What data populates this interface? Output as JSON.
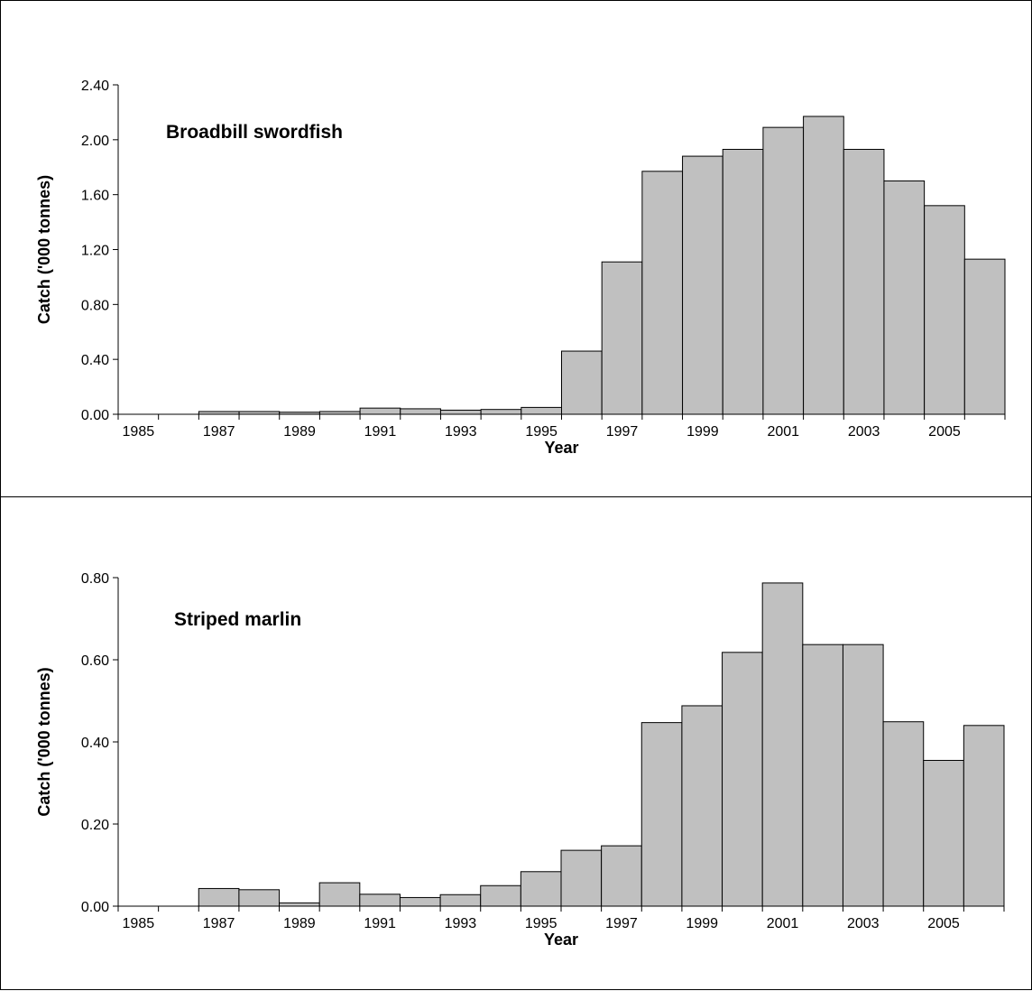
{
  "chart_data": [
    {
      "type": "bar",
      "title": "Broadbill swordfish",
      "xlabel": "Year",
      "ylabel": "Catch ('000 tonnes)",
      "ylim": [
        0,
        2.4
      ],
      "yticks": [
        "0.00",
        "0.40",
        "0.80",
        "1.20",
        "1.60",
        "2.00",
        "2.40"
      ],
      "xtick_labels": [
        "1985",
        "1987",
        "1989",
        "1991",
        "1993",
        "1995",
        "1997",
        "1999",
        "2001",
        "2003",
        "2005"
      ],
      "categories": [
        "1985",
        "1986",
        "1987",
        "1988",
        "1989",
        "1990",
        "1991",
        "1992",
        "1993",
        "1994",
        "1995",
        "1996",
        "1997",
        "1998",
        "1999",
        "2000",
        "2001",
        "2002",
        "2003",
        "2004",
        "2005",
        "2006"
      ],
      "values": [
        0,
        0,
        0.02,
        0.02,
        0.015,
        0.02,
        0.045,
        0.04,
        0.03,
        0.035,
        0.05,
        0.46,
        1.11,
        1.77,
        1.88,
        1.93,
        2.09,
        2.17,
        1.93,
        1.7,
        1.52,
        1.13
      ],
      "grid": false,
      "legend": "none"
    },
    {
      "type": "bar",
      "title": "Striped marlin",
      "xlabel": "Year",
      "ylabel": "Catch ('000 tonnes)",
      "ylim": [
        0,
        0.8
      ],
      "yticks": [
        "0.00",
        "0.20",
        "0.40",
        "0.60",
        "0.80"
      ],
      "xtick_labels": [
        "1985",
        "1987",
        "1989",
        "1991",
        "1993",
        "1995",
        "1997",
        "1999",
        "2001",
        "2003",
        "2005"
      ],
      "categories": [
        "1985",
        "1986",
        "1987",
        "1988",
        "1989",
        "1990",
        "1991",
        "1992",
        "1993",
        "1994",
        "1995",
        "1996",
        "1997",
        "1998",
        "1999",
        "2000",
        "2001",
        "2002",
        "2003",
        "2004",
        "2005",
        "2006"
      ],
      "values": [
        0,
        0,
        0.043,
        0.04,
        0.008,
        0.057,
        0.029,
        0.021,
        0.028,
        0.05,
        0.084,
        0.136,
        0.147,
        0.447,
        0.488,
        0.618,
        0.787,
        0.637,
        0.637,
        0.449,
        0.355,
        0.44
      ],
      "grid": false,
      "legend": "none"
    }
  ],
  "colors": {
    "bar_fill": "#c0c0c0",
    "bar_stroke": "#000000"
  }
}
